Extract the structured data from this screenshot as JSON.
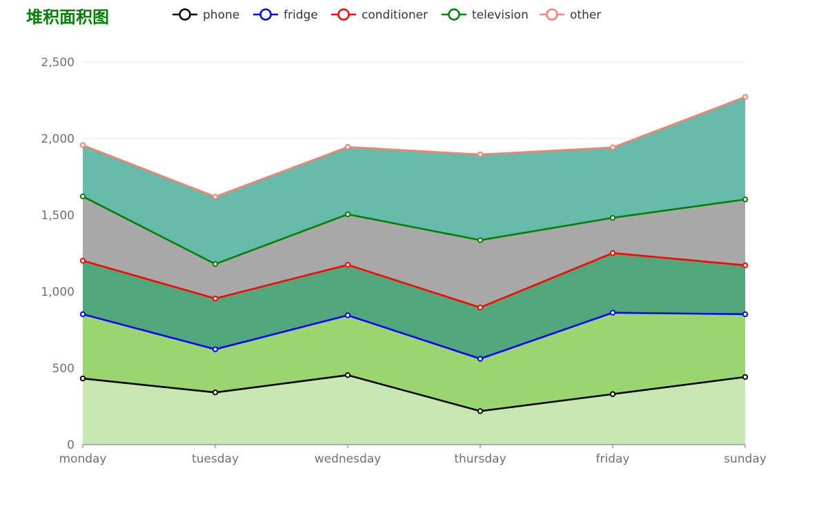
{
  "chart_data": {
    "type": "area",
    "stacked": true,
    "title": "堆积面积图",
    "title_color": "#008000",
    "categories": [
      "monday",
      "tuesday",
      "wednesday",
      "thursday",
      "friday",
      "sunday"
    ],
    "ylim": [
      0,
      2500
    ],
    "yticks": [
      "0",
      "500",
      "1,000",
      "1,500",
      "2,000",
      "2,500"
    ],
    "ytick_values": [
      0,
      500,
      1000,
      1500,
      2000,
      2500
    ],
    "grid": true,
    "legend_position": "top",
    "series": [
      {
        "name": "phone",
        "values": [
          432,
          341,
          454,
          219,
          330,
          442
        ],
        "line_color": "#000000",
        "area_color": "#c5e7b0"
      },
      {
        "name": "fridge",
        "values": [
          420,
          282,
          391,
          342,
          532,
          410
        ],
        "line_color": "#0000ff",
        "area_color": "#98d46b"
      },
      {
        "name": "conditioner",
        "values": [
          350,
          332,
          330,
          335,
          390,
          320
        ],
        "line_color": "#ff0000",
        "area_color": "#4ca577"
      },
      {
        "name": "television",
        "values": [
          420,
          225,
          330,
          440,
          230,
          430
        ],
        "line_color": "#008000",
        "area_color": "#a6a6a6"
      },
      {
        "name": "other",
        "values": [
          335,
          440,
          440,
          560,
          460,
          670
        ],
        "line_color": "#fa8072",
        "area_color": "#63b9a6"
      }
    ]
  }
}
